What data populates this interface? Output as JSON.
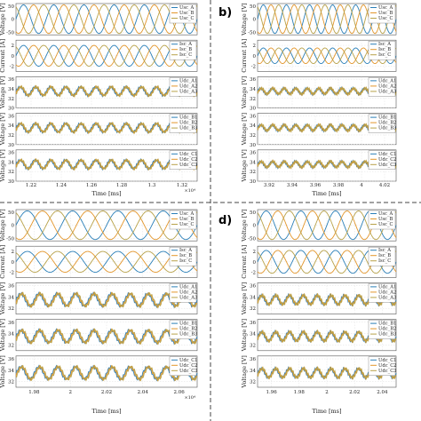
{
  "colors": {
    "phase_a": "#2a7fb8",
    "phase_b": "#e3962b",
    "phase_c": "#b8a24a"
  },
  "chart_data": [
    {
      "id": "a",
      "label": "",
      "type": "line",
      "xlabel": "Time [ms]",
      "x_ticks": [
        "1.22",
        "1.24",
        "1.26",
        "1.28",
        "1.3",
        "1.32"
      ],
      "x_exponent": "×10⁴",
      "grid": true,
      "legend_placement": "top-right",
      "panels": [
        {
          "ylabel": "Voltage [V]",
          "y_ticks": [
            "50",
            "0",
            "-50"
          ],
          "ylim": [
            -60,
            60
          ],
          "form": "sine3",
          "amplitude": 55,
          "cycles": 6,
          "series": [
            {
              "name": "Usc_A"
            },
            {
              "name": "Usc_B"
            },
            {
              "name": "Usc_C"
            }
          ]
        },
        {
          "ylabel": "Current [A]",
          "y_ticks": [
            "2",
            "0",
            "-2"
          ],
          "ylim": [
            -3,
            3
          ],
          "form": "sine3",
          "amplitude": 2,
          "cycles": 6,
          "series": [
            {
              "name": "Isc_A"
            },
            {
              "name": "Isc_B"
            },
            {
              "name": "Isc_C"
            }
          ]
        },
        {
          "ylabel": "Voltage [V]",
          "y_ticks": [
            "36",
            "34",
            "32",
            "30"
          ],
          "ylim": [
            30,
            36.5
          ],
          "form": "ripple",
          "mean": 33.5,
          "amplitude": 0.9,
          "cycles": 12,
          "series": [
            {
              "name": "Udc_A1"
            },
            {
              "name": "Udc_A2"
            },
            {
              "name": "Udc_A3"
            }
          ]
        },
        {
          "ylabel": "Voltage [V]",
          "y_ticks": [
            "36",
            "34",
            "32",
            "30"
          ],
          "ylim": [
            30,
            36.5
          ],
          "form": "ripple",
          "mean": 33.5,
          "amplitude": 0.9,
          "cycles": 12,
          "series": [
            {
              "name": "Udc_B1"
            },
            {
              "name": "Udc_B2"
            },
            {
              "name": "Udc_B3"
            }
          ]
        },
        {
          "ylabel": "Voltage [V]",
          "y_ticks": [
            "36",
            "34",
            "32",
            "30"
          ],
          "ylim": [
            30,
            36.5
          ],
          "form": "ripple",
          "mean": 33.5,
          "amplitude": 0.9,
          "cycles": 12,
          "series": [
            {
              "name": "Udc_C1"
            },
            {
              "name": "Udc_C2"
            },
            {
              "name": "Udc_C3"
            }
          ]
        }
      ]
    },
    {
      "id": "b",
      "label": "b)",
      "type": "line",
      "xlabel": "Time [ms]",
      "x_ticks": [
        "3.92",
        "3.94",
        "3.96",
        "3.98",
        "4",
        "4.02"
      ],
      "x_exponent": "",
      "grid": true,
      "legend_placement": "top-right",
      "panels": [
        {
          "ylabel": "Voltage [V]",
          "y_ticks": [
            "50",
            "0",
            "-50"
          ],
          "ylim": [
            -60,
            60
          ],
          "form": "sine3",
          "amplitude": 55,
          "cycles": 6,
          "series": [
            {
              "name": "Usc_A"
            },
            {
              "name": "Usc_B"
            },
            {
              "name": "Usc_C"
            }
          ]
        },
        {
          "ylabel": "Current [A]",
          "y_ticks": [
            "2",
            "0",
            "-2"
          ],
          "ylim": [
            -3,
            3
          ],
          "form": "sine3",
          "amplitude": 1.5,
          "cycles": 6,
          "series": [
            {
              "name": "Isc_A"
            },
            {
              "name": "Isc_B"
            },
            {
              "name": "Isc_C"
            }
          ]
        },
        {
          "ylabel": "Voltage [V]",
          "y_ticks": [
            "36",
            "34",
            "32",
            "30"
          ],
          "ylim": [
            30,
            36.5
          ],
          "form": "ripple",
          "mean": 33.5,
          "amplitude": 0.6,
          "cycles": 12,
          "series": [
            {
              "name": "Udc_A1"
            },
            {
              "name": "Udc_A2"
            },
            {
              "name": "Udc_A3"
            }
          ]
        },
        {
          "ylabel": "Voltage [V]",
          "y_ticks": [
            "36",
            "34",
            "32",
            "30"
          ],
          "ylim": [
            30,
            36.5
          ],
          "form": "ripple",
          "mean": 33.5,
          "amplitude": 0.6,
          "cycles": 12,
          "series": [
            {
              "name": "Udc_B1"
            },
            {
              "name": "Udc_B2"
            },
            {
              "name": "Udc_B3"
            }
          ]
        },
        {
          "ylabel": "Voltage [V]",
          "y_ticks": [
            "36",
            "34",
            "32",
            "30"
          ],
          "ylim": [
            30,
            36.5
          ],
          "form": "ripple",
          "mean": 33.5,
          "amplitude": 0.6,
          "cycles": 12,
          "series": [
            {
              "name": "Udc_C1"
            },
            {
              "name": "Udc_C2"
            },
            {
              "name": "Udc_C3"
            }
          ]
        }
      ]
    },
    {
      "id": "c",
      "label": "",
      "type": "line",
      "xlabel": "Time [ms]",
      "x_ticks": [
        "1.98",
        "2",
        "2.02",
        "2.04",
        "2.06"
      ],
      "x_exponent": "×10⁴",
      "grid": true,
      "legend_placement": "top-right",
      "panels": [
        {
          "ylabel": "Voltage [V]",
          "y_ticks": [
            "50",
            "0",
            "-50"
          ],
          "ylim": [
            -60,
            60
          ],
          "form": "sine3",
          "amplitude": 55,
          "cycles": 4,
          "series": [
            {
              "name": "Usc_A"
            },
            {
              "name": "Usc_B"
            },
            {
              "name": "Usc_C"
            }
          ]
        },
        {
          "ylabel": "Current [A]",
          "y_ticks": [
            "2",
            "0",
            "-2"
          ],
          "ylim": [
            -3,
            3
          ],
          "form": "sine3",
          "amplitude": 2,
          "cycles": 4,
          "series": [
            {
              "name": "Isc_A"
            },
            {
              "name": "Isc_B"
            },
            {
              "name": "Isc_C"
            }
          ]
        },
        {
          "ylabel": "Voltage [V]",
          "y_ticks": [
            "36",
            "34",
            "32"
          ],
          "ylim": [
            31,
            36.5
          ],
          "form": "ripple",
          "mean": 33.5,
          "amplitude": 1.1,
          "cycles": 10,
          "series": [
            {
              "name": "Udc_A1"
            },
            {
              "name": "Udc_A2"
            },
            {
              "name": "Udc_A3"
            }
          ]
        },
        {
          "ylabel": "Voltage [V]",
          "y_ticks": [
            "36",
            "34",
            "32"
          ],
          "ylim": [
            31,
            36.5
          ],
          "form": "ripple",
          "mean": 33.5,
          "amplitude": 1.1,
          "cycles": 10,
          "series": [
            {
              "name": "Udc_B1"
            },
            {
              "name": "Udc_B2"
            },
            {
              "name": "Udc_B3"
            }
          ]
        },
        {
          "ylabel": "Voltage [V]",
          "y_ticks": [
            "36",
            "34",
            "32"
          ],
          "ylim": [
            31,
            36.5
          ],
          "form": "ripple",
          "mean": 33.5,
          "amplitude": 1.1,
          "cycles": 10,
          "series": [
            {
              "name": "Udc_C1"
            },
            {
              "name": "Udc_C2"
            },
            {
              "name": "Udc_C3"
            }
          ]
        }
      ]
    },
    {
      "id": "d",
      "label": "d)",
      "type": "line",
      "xlabel": "Time [ms]",
      "x_ticks": [
        "1.96",
        "1.98",
        "2",
        "2.02",
        "2.04"
      ],
      "x_exponent": "",
      "grid": true,
      "legend_placement": "top-right",
      "panels": [
        {
          "ylabel": "Voltage [V]",
          "y_ticks": [
            "50",
            "0",
            "-50"
          ],
          "ylim": [
            -60,
            60
          ],
          "form": "sine3",
          "amplitude": 55,
          "cycles": 4,
          "series": [
            {
              "name": "Usc_A"
            },
            {
              "name": "Usc_B"
            },
            {
              "name": "Usc_C"
            }
          ]
        },
        {
          "ylabel": "Current [A]",
          "y_ticks": [
            "2",
            "0",
            "-2"
          ],
          "ylim": [
            -3,
            3
          ],
          "form": "sine3",
          "amplitude": 2.2,
          "cycles": 4,
          "series": [
            {
              "name": "Isc_A"
            },
            {
              "name": "Isc_B"
            },
            {
              "name": "Isc_C"
            }
          ]
        },
        {
          "ylabel": "Voltage [V]",
          "y_ticks": [
            "36",
            "34",
            "32"
          ],
          "ylim": [
            31,
            36.5
          ],
          "form": "ripple",
          "mean": 33.5,
          "amplitude": 0.8,
          "cycles": 10,
          "series": [
            {
              "name": "Udc_A1"
            },
            {
              "name": "Udc_A2"
            },
            {
              "name": "Udc_A3"
            }
          ]
        },
        {
          "ylabel": "Voltage [V]",
          "y_ticks": [
            "36",
            "34",
            "32"
          ],
          "ylim": [
            31,
            36.5
          ],
          "form": "ripple",
          "mean": 33.5,
          "amplitude": 0.8,
          "cycles": 10,
          "series": [
            {
              "name": "Udc_B1"
            },
            {
              "name": "Udc_B2"
            },
            {
              "name": "Udc_B3"
            }
          ]
        },
        {
          "ylabel": "Voltage [V]",
          "y_ticks": [
            "36",
            "34",
            "32"
          ],
          "ylim": [
            31,
            36.5
          ],
          "form": "ripple",
          "mean": 33.5,
          "amplitude": 0.8,
          "cycles": 10,
          "series": [
            {
              "name": "Udc_C1"
            },
            {
              "name": "Udc_C2"
            },
            {
              "name": "Udc_C3"
            }
          ]
        }
      ]
    }
  ]
}
